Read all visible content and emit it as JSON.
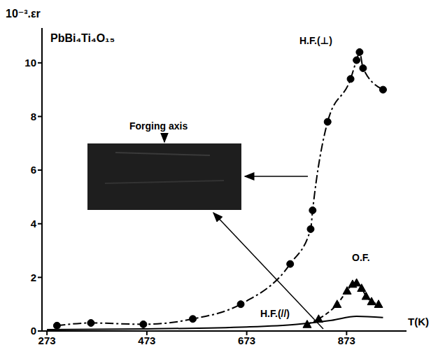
{
  "chart_data": {
    "type": "line",
    "title": "PbBi₄Ti₄O₁₅",
    "x_label": "T(K)",
    "y_label": "10⁻³.εr",
    "xlim": [
      263,
      993
    ],
    "xticks": [
      273,
      473,
      673,
      873
    ],
    "ylim": [
      0,
      11.3
    ],
    "yticks": [
      0,
      2,
      4,
      6,
      8,
      10
    ],
    "annotations": [
      "Forging axis"
    ],
    "series": [
      {
        "name": "H.F.(⊥)",
        "color": "#000000",
        "marker": "circle",
        "line_style": "dashdot",
        "x": [
          293,
          361,
          466,
          565,
          661,
          760,
          801,
          805,
          835,
          881,
          893,
          899,
          906,
          946
        ],
        "values": [
          0.2,
          0.3,
          0.25,
          0.45,
          1.0,
          2.5,
          3.8,
          4.5,
          7.8,
          9.4,
          10.1,
          10.4,
          9.8,
          9.0
        ]
      },
      {
        "name": "H.F.(//)",
        "color": "#000000",
        "marker": "none",
        "line_style": "solid",
        "x": [
          273,
          473,
          673,
          773,
          843,
          893,
          946
        ],
        "values": [
          0.05,
          0.08,
          0.15,
          0.25,
          0.4,
          0.55,
          0.5
        ]
      },
      {
        "name": "O.F.",
        "color": "#000000",
        "marker": "triangle",
        "line_style": "dashed",
        "x": [
          794,
          817,
          854,
          874,
          885,
          893,
          903,
          912,
          923,
          937
        ],
        "values": [
          0.25,
          0.45,
          1.0,
          1.5,
          1.75,
          1.8,
          1.6,
          1.3,
          1.1,
          1.0
        ]
      }
    ]
  }
}
